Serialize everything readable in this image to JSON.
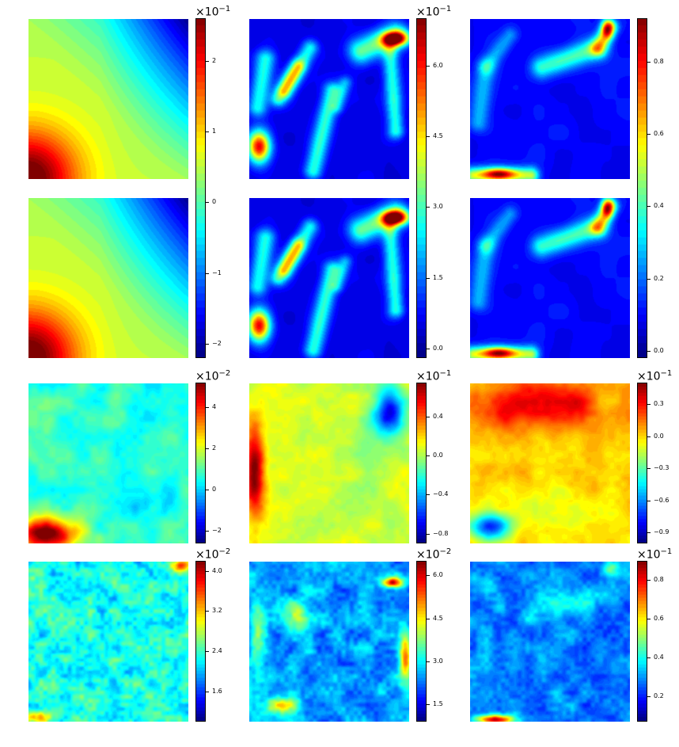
{
  "chart_data": {
    "type": "heatmap",
    "colormap": "jet",
    "grid": false,
    "layout": "4 rows x 3 columns of heatmap panels with colorbars",
    "panels": [
      {
        "row": 0,
        "col": 0,
        "field": "smooth",
        "pattern": "hot bottom-left corner, cool top-right corner"
      },
      {
        "row": 0,
        "col": 1,
        "field": "smooth",
        "pattern": "blue background with cyan streaks; hot spots at left edge and top-right"
      },
      {
        "row": 0,
        "col": 2,
        "field": "smooth",
        "pattern": "blue background; hot spots at top-right and bottom-left"
      },
      {
        "row": 1,
        "col": 0,
        "field": "smooth",
        "pattern": "hot bottom-left corner, cool top-right corner"
      },
      {
        "row": 1,
        "col": 1,
        "field": "smooth",
        "pattern": "blue background with cyan streaks; hot spots at left edge and top-right"
      },
      {
        "row": 1,
        "col": 2,
        "field": "smooth",
        "pattern": "blue background; hot spots at top-right and bottom-left"
      },
      {
        "row": 2,
        "col": 0,
        "field": "noisy",
        "pattern": "blue-cyan field; hot bottom-left"
      },
      {
        "row": 2,
        "col": 1,
        "field": "noisy",
        "pattern": "cyan-green field; red left edge; blue top-right"
      },
      {
        "row": 2,
        "col": 2,
        "field": "noisy",
        "pattern": "yellow-orange field; red top; blue bottom-left"
      },
      {
        "row": 3,
        "col": 0,
        "field": "noisy",
        "pattern": "blue field with cyan noise"
      },
      {
        "row": 3,
        "col": 1,
        "field": "noisy",
        "pattern": "blue field with cyan patches; orange right edge"
      },
      {
        "row": 3,
        "col": 2,
        "field": "noisy",
        "pattern": "blue field; orange bottom-left"
      }
    ],
    "colorbars": [
      {
        "id": "cb-r01-c0",
        "multiplier": "×10",
        "exponent": "−1",
        "ticks": [
          "2",
          "1",
          "0",
          "−1",
          "−2"
        ],
        "tick_values": [
          2,
          1,
          0,
          -1,
          -2
        ],
        "range": [
          -2.2,
          2.6
        ]
      },
      {
        "id": "cb-r01-c1",
        "multiplier": "×10",
        "exponent": "−1",
        "ticks": [
          "6.0",
          "4.5",
          "3.0",
          "1.5",
          "0.0"
        ],
        "tick_values": [
          6.0,
          4.5,
          3.0,
          1.5,
          0.0
        ],
        "range": [
          -0.2,
          7.0
        ]
      },
      {
        "id": "cb-r01-c2",
        "multiplier": "",
        "exponent": "",
        "ticks": [
          "0.8",
          "0.6",
          "0.4",
          "0.2",
          "0.0"
        ],
        "tick_values": [
          0.8,
          0.6,
          0.4,
          0.2,
          0.0
        ],
        "range": [
          -0.02,
          0.92
        ]
      },
      {
        "id": "cb-r2-c0",
        "multiplier": "×10",
        "exponent": "−2",
        "ticks": [
          "4",
          "2",
          "0",
          "−2"
        ],
        "tick_values": [
          4,
          2,
          0,
          -2
        ],
        "range": [
          -2.6,
          5.2
        ]
      },
      {
        "id": "cb-r2-c1",
        "multiplier": "×10",
        "exponent": "−1",
        "ticks": [
          "0.4",
          "0.0",
          "−0.4",
          "−0.8"
        ],
        "tick_values": [
          0.4,
          0.0,
          -0.4,
          -0.8
        ],
        "range": [
          -0.9,
          0.75
        ]
      },
      {
        "id": "cb-r2-c2",
        "multiplier": "×10",
        "exponent": "−1",
        "ticks": [
          "0.3",
          "0.0",
          "−0.3",
          "−0.6",
          "−0.9"
        ],
        "tick_values": [
          0.3,
          0.0,
          -0.3,
          -0.6,
          -0.9
        ],
        "range": [
          -1.0,
          0.5
        ]
      },
      {
        "id": "cb-r3-c0",
        "multiplier": "×10",
        "exponent": "−2",
        "ticks": [
          "4.0",
          "3.2",
          "2.4",
          "1.6"
        ],
        "tick_values": [
          4.0,
          3.2,
          2.4,
          1.6
        ],
        "range": [
          1.0,
          4.2
        ]
      },
      {
        "id": "cb-r3-c1",
        "multiplier": "×10",
        "exponent": "−2",
        "ticks": [
          "6.0",
          "4.5",
          "3.0",
          "1.5"
        ],
        "tick_values": [
          6.0,
          4.5,
          3.0,
          1.5
        ],
        "range": [
          0.9,
          6.5
        ]
      },
      {
        "id": "cb-r3-c2",
        "multiplier": "×10",
        "exponent": "−1",
        "ticks": [
          "0.8",
          "0.6",
          "0.4",
          "0.2"
        ],
        "tick_values": [
          0.8,
          0.6,
          0.4,
          0.2
        ],
        "range": [
          0.07,
          0.9
        ]
      }
    ]
  }
}
